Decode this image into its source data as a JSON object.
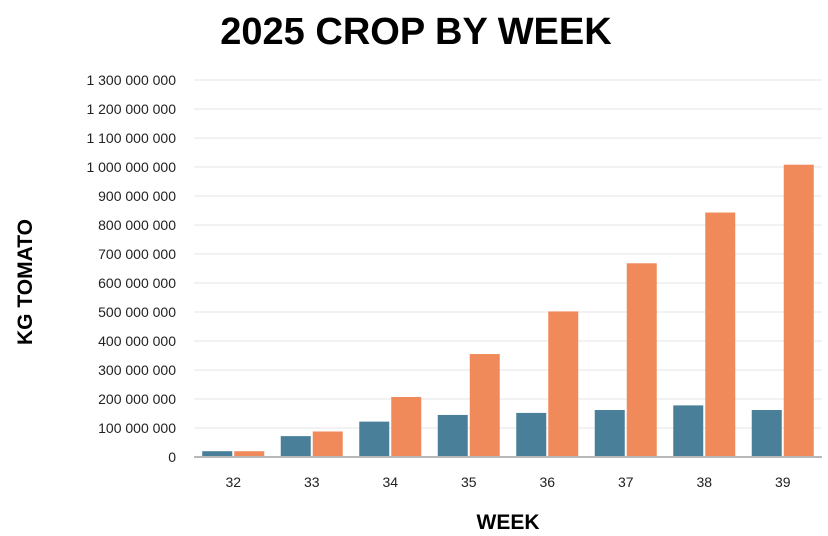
{
  "chart_data": {
    "type": "bar",
    "title": "2025 CROP BY WEEK",
    "xlabel": "WEEK",
    "ylabel": "KG TOMATO",
    "categories": [
      "32",
      "33",
      "34",
      "35",
      "36",
      "37",
      "38",
      "39"
    ],
    "series": [
      {
        "values": [
          20000000,
          72000000,
          122000000,
          145000000,
          152000000,
          162000000,
          178000000,
          162000000
        ],
        "color": "#4a7f99"
      },
      {
        "values": [
          20000000,
          88000000,
          207000000,
          355000000,
          502000000,
          668000000,
          843000000,
          1008000000
        ],
        "color": "#f08a5a"
      }
    ],
    "ylim": [
      0,
      1300000000
    ],
    "yticks": [
      "0",
      "100 000 000",
      "200 000 000",
      "300 000 000",
      "400 000 000",
      "500 000 000",
      "600 000 000",
      "700 000 000",
      "800 000 000",
      "900 000 000",
      "1 000 000 000",
      "1 100 000 000",
      "1 200 000 000",
      "1 300 000 000"
    ],
    "grid": true,
    "legend": "none"
  }
}
